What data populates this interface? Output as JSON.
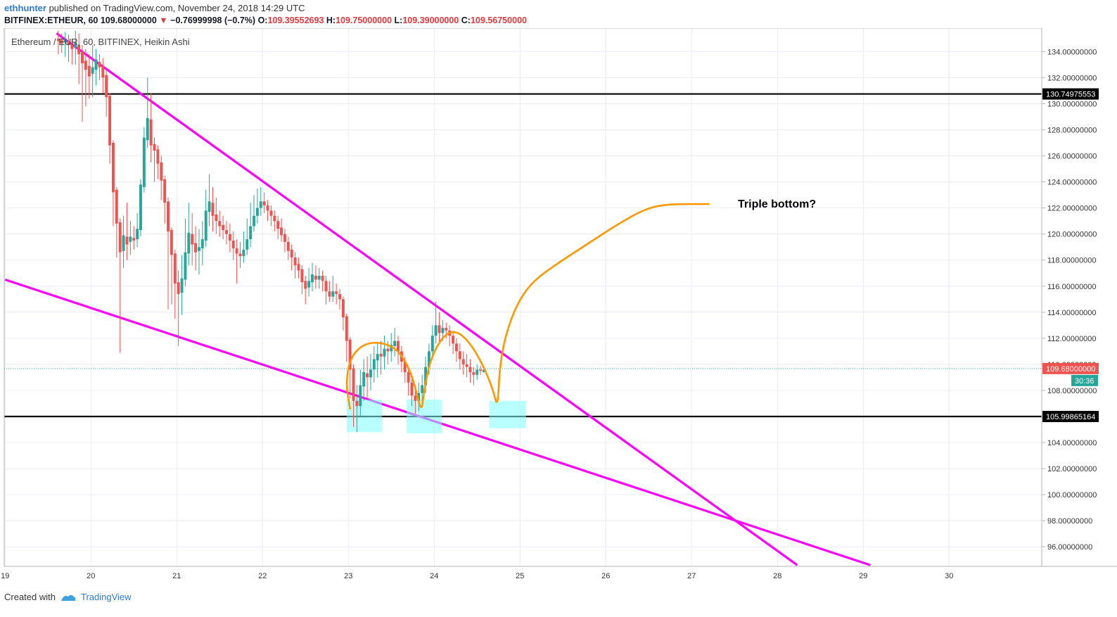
{
  "header": {
    "user": "ethhunter",
    "published": "published on TradingView.com, November 24, 2018 14:29 UTC",
    "symbol": "BITFINEX:ETHEUR, 60",
    "last": "109.68000000",
    "change": "−0.76999998 (−0.7%)",
    "o_label": "O:",
    "o": "109.39552693",
    "h_label": "H:",
    "h": "109.75000000",
    "l_label": "L:",
    "l": "109.39000000",
    "c_label": "C:",
    "c": "109.56750000"
  },
  "footer": {
    "created_with": "Created with",
    "brand": "TradingView"
  },
  "colors": {
    "up": "#26a69a",
    "down": "#ef5350",
    "trendline": "#ff00ff",
    "projection": "#ff9800",
    "highlight": "#80ffff",
    "level": "#000000",
    "last_price": "#ef5350",
    "countdown": "#26a69a"
  },
  "chart_data": {
    "type": "candlestick",
    "title": "Ethereum / EUR, 60, BITFINEX, Heikin Ashi",
    "x_tick_labels": [
      "19",
      "20",
      "21",
      "22",
      "23",
      "24",
      "25",
      "26",
      "27",
      "28",
      "29",
      "30"
    ],
    "x_range_days": [
      18.99,
      31.08
    ],
    "ylim": [
      94.5,
      135.8
    ],
    "y_ticks": [
      "134.00000000",
      "132.00000000",
      "130.00000000",
      "128.00000000",
      "126.00000000",
      "124.00000000",
      "122.00000000",
      "120.00000000",
      "118.00000000",
      "116.00000000",
      "114.00000000",
      "112.00000000",
      "110.00000000",
      "108.00000000",
      "106.00000000",
      "104.00000000",
      "102.00000000",
      "100.00000000",
      "98.00000000",
      "96.00000000"
    ],
    "horizontal_levels": [
      {
        "value": 130.74975553,
        "label": "130.74975553"
      },
      {
        "value": 105.99865164,
        "label": "105.99865164"
      }
    ],
    "last_price": {
      "value": 109.68,
      "label": "109.68000000",
      "countdown": "30:36"
    },
    "annotation": "Triple bottom?",
    "trendlines": [
      {
        "x1": 19.6,
        "y1": 135.4,
        "x2": 28.23,
        "y2": 94.6
      },
      {
        "x1": 19.0,
        "y1": 116.5,
        "x2": 29.08,
        "y2": 94.6
      }
    ],
    "highlight_boxes": [
      {
        "x1": 22.98,
        "x2": 23.39,
        "y1": 104.8,
        "y2": 107.3
      },
      {
        "x1": 23.68,
        "x2": 24.09,
        "y1": 104.7,
        "y2": 107.3
      },
      {
        "x1": 24.64,
        "x2": 25.07,
        "y1": 105.1,
        "y2": 107.2
      }
    ],
    "projection_path": [
      [
        23.02,
        106.6
      ],
      [
        22.97,
        108.5
      ],
      [
        23.02,
        110.5
      ],
      [
        23.18,
        111.6
      ],
      [
        23.4,
        111.7
      ],
      [
        23.6,
        111.0
      ],
      [
        23.75,
        109.1
      ],
      [
        23.85,
        106.2
      ],
      [
        23.88,
        107.8
      ],
      [
        23.95,
        110.3
      ],
      [
        24.1,
        112.2
      ],
      [
        24.25,
        112.6
      ],
      [
        24.4,
        111.8
      ],
      [
        24.55,
        110.2
      ],
      [
        24.68,
        108.2
      ],
      [
        24.74,
        106.6
      ],
      [
        24.76,
        109.5
      ],
      [
        24.82,
        112.0
      ],
      [
        24.96,
        114.6
      ],
      [
        25.15,
        116.4
      ],
      [
        25.45,
        117.8
      ],
      [
        25.8,
        119.3
      ],
      [
        26.15,
        120.8
      ],
      [
        26.45,
        121.9
      ],
      [
        26.7,
        122.3
      ],
      [
        27.2,
        122.3
      ]
    ],
    "candles": [
      {
        "t": 19.62,
        "o": 135.0,
        "c": 134.8,
        "h": 135.6,
        "l": 133.8
      },
      {
        "t": 19.66,
        "o": 134.9,
        "c": 134.6,
        "h": 135.4,
        "l": 133.9
      },
      {
        "t": 19.7,
        "o": 134.7,
        "c": 134.9,
        "h": 135.5,
        "l": 133.6
      },
      {
        "t": 19.74,
        "o": 134.8,
        "c": 134.5,
        "h": 135.3,
        "l": 133.2
      },
      {
        "t": 19.78,
        "o": 134.6,
        "c": 134.2,
        "h": 135.0,
        "l": 133.0
      },
      {
        "t": 19.82,
        "o": 134.3,
        "c": 134.7,
        "h": 135.6,
        "l": 133.0
      },
      {
        "t": 19.86,
        "o": 134.5,
        "c": 133.8,
        "h": 135.4,
        "l": 131.5
      },
      {
        "t": 19.9,
        "o": 134.0,
        "c": 133.1,
        "h": 134.5,
        "l": 128.6
      },
      {
        "t": 19.94,
        "o": 133.3,
        "c": 132.6,
        "h": 134.2,
        "l": 129.8
      },
      {
        "t": 19.98,
        "o": 132.9,
        "c": 132.1,
        "h": 133.8,
        "l": 130.4
      },
      {
        "t": 20.02,
        "o": 132.3,
        "c": 132.8,
        "h": 134.5,
        "l": 130.5
      },
      {
        "t": 20.06,
        "o": 132.6,
        "c": 133.4,
        "h": 134.2,
        "l": 131.4
      },
      {
        "t": 20.1,
        "o": 133.2,
        "c": 132.8,
        "h": 133.8,
        "l": 131.8
      },
      {
        "t": 20.14,
        "o": 132.9,
        "c": 132.0,
        "h": 133.5,
        "l": 130.8
      },
      {
        "t": 20.18,
        "o": 132.2,
        "c": 130.5,
        "h": 132.6,
        "l": 129.0
      },
      {
        "t": 20.22,
        "o": 130.6,
        "c": 126.8,
        "h": 130.8,
        "l": 125.4
      },
      {
        "t": 20.26,
        "o": 127.0,
        "c": 123.2,
        "h": 127.2,
        "l": 120.6
      },
      {
        "t": 20.3,
        "o": 123.4,
        "c": 120.8,
        "h": 123.6,
        "l": 118.2
      },
      {
        "t": 20.34,
        "o": 120.9,
        "c": 118.6,
        "h": 121.2,
        "l": 110.9
      },
      {
        "t": 20.38,
        "o": 118.7,
        "c": 119.9,
        "h": 121.4,
        "l": 117.4
      },
      {
        "t": 20.42,
        "o": 119.8,
        "c": 119.2,
        "h": 122.4,
        "l": 118.0
      },
      {
        "t": 20.46,
        "o": 119.4,
        "c": 119.8,
        "h": 121.0,
        "l": 118.4
      },
      {
        "t": 20.5,
        "o": 119.7,
        "c": 119.5,
        "h": 120.6,
        "l": 118.8
      },
      {
        "t": 20.54,
        "o": 119.6,
        "c": 120.4,
        "h": 121.6,
        "l": 119.0
      },
      {
        "t": 20.58,
        "o": 120.3,
        "c": 123.8,
        "h": 124.2,
        "l": 119.8
      },
      {
        "t": 20.62,
        "o": 123.6,
        "c": 127.4,
        "h": 128.2,
        "l": 123.2
      },
      {
        "t": 20.66,
        "o": 127.2,
        "c": 128.9,
        "h": 132.0,
        "l": 126.6
      },
      {
        "t": 20.7,
        "o": 128.8,
        "c": 126.8,
        "h": 130.8,
        "l": 125.5
      },
      {
        "t": 20.74,
        "o": 126.9,
        "c": 126.4,
        "h": 127.4,
        "l": 124.0
      },
      {
        "t": 20.78,
        "o": 126.5,
        "c": 125.4,
        "h": 126.8,
        "l": 124.2
      },
      {
        "t": 20.82,
        "o": 125.5,
        "c": 124.1,
        "h": 126.0,
        "l": 122.6
      },
      {
        "t": 20.86,
        "o": 124.2,
        "c": 122.4,
        "h": 124.5,
        "l": 120.8
      },
      {
        "t": 20.9,
        "o": 122.5,
        "c": 120.2,
        "h": 122.8,
        "l": 114.2
      },
      {
        "t": 20.94,
        "o": 120.3,
        "c": 118.4,
        "h": 120.5,
        "l": 114.6
      },
      {
        "t": 20.98,
        "o": 118.5,
        "c": 116.2,
        "h": 118.8,
        "l": 113.5
      },
      {
        "t": 21.02,
        "o": 116.3,
        "c": 115.4,
        "h": 117.2,
        "l": 111.4
      },
      {
        "t": 21.06,
        "o": 115.5,
        "c": 116.6,
        "h": 118.4,
        "l": 113.8
      },
      {
        "t": 21.1,
        "o": 116.5,
        "c": 118.6,
        "h": 121.2,
        "l": 116.0
      },
      {
        "t": 21.14,
        "o": 118.5,
        "c": 120.1,
        "h": 122.4,
        "l": 117.6
      },
      {
        "t": 21.18,
        "o": 120.0,
        "c": 119.2,
        "h": 121.6,
        "l": 117.6
      },
      {
        "t": 21.22,
        "o": 119.3,
        "c": 118.6,
        "h": 120.6,
        "l": 117.2
      },
      {
        "t": 21.26,
        "o": 118.7,
        "c": 119.0,
        "h": 120.4,
        "l": 116.9
      },
      {
        "t": 21.3,
        "o": 118.9,
        "c": 119.6,
        "h": 121.0,
        "l": 117.6
      },
      {
        "t": 21.34,
        "o": 119.5,
        "c": 121.8,
        "h": 123.4,
        "l": 119.0
      },
      {
        "t": 21.38,
        "o": 121.7,
        "c": 122.5,
        "h": 124.6,
        "l": 120.6
      },
      {
        "t": 21.42,
        "o": 122.4,
        "c": 121.4,
        "h": 123.6,
        "l": 120.2
      },
      {
        "t": 21.46,
        "o": 121.5,
        "c": 121.0,
        "h": 122.8,
        "l": 120.0
      },
      {
        "t": 21.5,
        "o": 121.0,
        "c": 120.6,
        "h": 121.8,
        "l": 119.8
      },
      {
        "t": 21.54,
        "o": 120.7,
        "c": 120.3,
        "h": 121.4,
        "l": 119.6
      },
      {
        "t": 21.58,
        "o": 120.3,
        "c": 120.0,
        "h": 121.0,
        "l": 119.2
      },
      {
        "t": 21.62,
        "o": 120.0,
        "c": 119.5,
        "h": 120.8,
        "l": 118.6
      },
      {
        "t": 21.66,
        "o": 119.5,
        "c": 118.9,
        "h": 120.2,
        "l": 118.0
      },
      {
        "t": 21.7,
        "o": 118.9,
        "c": 118.5,
        "h": 119.6,
        "l": 116.2
      },
      {
        "t": 21.74,
        "o": 118.5,
        "c": 118.3,
        "h": 119.4,
        "l": 117.4
      },
      {
        "t": 21.78,
        "o": 118.3,
        "c": 118.8,
        "h": 120.2,
        "l": 117.8
      },
      {
        "t": 21.82,
        "o": 118.8,
        "c": 119.6,
        "h": 121.2,
        "l": 118.4
      },
      {
        "t": 21.86,
        "o": 119.6,
        "c": 120.6,
        "h": 122.4,
        "l": 119.0
      },
      {
        "t": 21.9,
        "o": 120.6,
        "c": 121.4,
        "h": 123.0,
        "l": 120.2
      },
      {
        "t": 21.94,
        "o": 121.4,
        "c": 122.0,
        "h": 123.5,
        "l": 120.8
      },
      {
        "t": 21.98,
        "o": 122.0,
        "c": 122.5,
        "h": 123.6,
        "l": 121.4
      },
      {
        "t": 22.02,
        "o": 122.5,
        "c": 122.2,
        "h": 123.2,
        "l": 121.6
      },
      {
        "t": 22.06,
        "o": 122.2,
        "c": 121.8,
        "h": 122.6,
        "l": 121.0
      },
      {
        "t": 22.1,
        "o": 121.8,
        "c": 121.4,
        "h": 122.2,
        "l": 120.6
      },
      {
        "t": 22.14,
        "o": 121.4,
        "c": 121.0,
        "h": 121.8,
        "l": 120.2
      },
      {
        "t": 22.18,
        "o": 121.0,
        "c": 120.4,
        "h": 121.4,
        "l": 119.6
      },
      {
        "t": 22.22,
        "o": 120.5,
        "c": 119.9,
        "h": 121.2,
        "l": 119.4
      },
      {
        "t": 22.26,
        "o": 120.0,
        "c": 119.4,
        "h": 120.4,
        "l": 118.6
      },
      {
        "t": 22.3,
        "o": 119.4,
        "c": 118.7,
        "h": 119.8,
        "l": 118.0
      },
      {
        "t": 22.34,
        "o": 118.8,
        "c": 118.2,
        "h": 119.2,
        "l": 117.2
      },
      {
        "t": 22.38,
        "o": 118.2,
        "c": 117.6,
        "h": 118.6,
        "l": 116.6
      },
      {
        "t": 22.42,
        "o": 117.7,
        "c": 117.2,
        "h": 118.2,
        "l": 116.6
      },
      {
        "t": 22.46,
        "o": 117.3,
        "c": 116.3,
        "h": 117.6,
        "l": 115.4
      },
      {
        "t": 22.5,
        "o": 116.4,
        "c": 115.8,
        "h": 116.8,
        "l": 114.6
      },
      {
        "t": 22.54,
        "o": 115.9,
        "c": 116.4,
        "h": 117.4,
        "l": 115.2
      },
      {
        "t": 22.58,
        "o": 116.3,
        "c": 116.9,
        "h": 117.8,
        "l": 115.6
      },
      {
        "t": 22.62,
        "o": 116.8,
        "c": 116.5,
        "h": 117.6,
        "l": 115.8
      },
      {
        "t": 22.66,
        "o": 116.5,
        "c": 116.8,
        "h": 117.4,
        "l": 115.8
      },
      {
        "t": 22.7,
        "o": 116.8,
        "c": 116.4,
        "h": 117.2,
        "l": 115.6
      },
      {
        "t": 22.74,
        "o": 116.4,
        "c": 115.6,
        "h": 116.8,
        "l": 114.6
      },
      {
        "t": 22.78,
        "o": 115.6,
        "c": 115.2,
        "h": 116.4,
        "l": 114.8
      },
      {
        "t": 22.82,
        "o": 115.2,
        "c": 115.6,
        "h": 116.8,
        "l": 114.8
      },
      {
        "t": 22.86,
        "o": 115.6,
        "c": 115.4,
        "h": 116.2,
        "l": 114.6
      },
      {
        "t": 22.9,
        "o": 115.4,
        "c": 115.0,
        "h": 115.8,
        "l": 114.2
      },
      {
        "t": 22.94,
        "o": 115.0,
        "c": 113.6,
        "h": 115.2,
        "l": 112.6
      },
      {
        "t": 22.98,
        "o": 113.7,
        "c": 111.8,
        "h": 113.9,
        "l": 110.2
      },
      {
        "t": 23.02,
        "o": 111.9,
        "c": 109.6,
        "h": 112.1,
        "l": 107.4
      },
      {
        "t": 23.06,
        "o": 109.7,
        "c": 107.2,
        "h": 110.0,
        "l": 105.2
      },
      {
        "t": 23.1,
        "o": 107.2,
        "c": 106.8,
        "h": 108.4,
        "l": 104.8
      },
      {
        "t": 23.14,
        "o": 106.8,
        "c": 108.4,
        "h": 109.6,
        "l": 106.0
      },
      {
        "t": 23.18,
        "o": 108.3,
        "c": 109.4,
        "h": 110.4,
        "l": 107.2
      },
      {
        "t": 23.22,
        "o": 109.3,
        "c": 109.0,
        "h": 110.6,
        "l": 107.4
      },
      {
        "t": 23.26,
        "o": 109.0,
        "c": 109.6,
        "h": 110.8,
        "l": 108.0
      },
      {
        "t": 23.3,
        "o": 109.6,
        "c": 110.4,
        "h": 111.4,
        "l": 108.6
      },
      {
        "t": 23.34,
        "o": 110.3,
        "c": 110.8,
        "h": 111.6,
        "l": 109.0
      },
      {
        "t": 23.38,
        "o": 110.8,
        "c": 110.6,
        "h": 111.8,
        "l": 109.2
      },
      {
        "t": 23.42,
        "o": 110.6,
        "c": 111.2,
        "h": 112.2,
        "l": 109.6
      },
      {
        "t": 23.46,
        "o": 111.2,
        "c": 111.0,
        "h": 111.8,
        "l": 110.0
      },
      {
        "t": 23.5,
        "o": 111.0,
        "c": 111.5,
        "h": 112.4,
        "l": 110.2
      },
      {
        "t": 23.54,
        "o": 111.4,
        "c": 111.8,
        "h": 112.8,
        "l": 110.6
      },
      {
        "t": 23.58,
        "o": 111.8,
        "c": 111.0,
        "h": 112.2,
        "l": 110.0
      },
      {
        "t": 23.62,
        "o": 111.0,
        "c": 110.2,
        "h": 111.4,
        "l": 109.4
      },
      {
        "t": 23.66,
        "o": 110.2,
        "c": 109.4,
        "h": 110.6,
        "l": 108.6
      },
      {
        "t": 23.7,
        "o": 109.4,
        "c": 108.6,
        "h": 109.8,
        "l": 107.6
      },
      {
        "t": 23.74,
        "o": 108.6,
        "c": 107.6,
        "h": 109.0,
        "l": 106.8
      },
      {
        "t": 23.78,
        "o": 107.6,
        "c": 107.2,
        "h": 108.4,
        "l": 106.2
      },
      {
        "t": 23.82,
        "o": 107.2,
        "c": 107.8,
        "h": 108.6,
        "l": 106.4
      },
      {
        "t": 23.86,
        "o": 107.8,
        "c": 108.4,
        "h": 109.2,
        "l": 107.0
      },
      {
        "t": 23.9,
        "o": 108.4,
        "c": 109.8,
        "h": 110.6,
        "l": 107.8
      },
      {
        "t": 23.94,
        "o": 109.8,
        "c": 111.0,
        "h": 111.6,
        "l": 109.2
      },
      {
        "t": 23.98,
        "o": 111.0,
        "c": 112.2,
        "h": 113.0,
        "l": 110.4
      },
      {
        "t": 24.02,
        "o": 112.2,
        "c": 113.0,
        "h": 114.8,
        "l": 111.6
      },
      {
        "t": 24.06,
        "o": 113.0,
        "c": 112.4,
        "h": 114.0,
        "l": 111.6
      },
      {
        "t": 24.1,
        "o": 112.4,
        "c": 112.8,
        "h": 113.4,
        "l": 111.8
      },
      {
        "t": 24.14,
        "o": 112.8,
        "c": 112.6,
        "h": 113.2,
        "l": 112.0
      },
      {
        "t": 24.18,
        "o": 112.6,
        "c": 112.2,
        "h": 113.0,
        "l": 111.4
      },
      {
        "t": 24.22,
        "o": 112.2,
        "c": 111.6,
        "h": 112.6,
        "l": 110.8
      },
      {
        "t": 24.26,
        "o": 111.6,
        "c": 111.0,
        "h": 112.0,
        "l": 110.2
      },
      {
        "t": 24.3,
        "o": 111.0,
        "c": 110.4,
        "h": 111.6,
        "l": 109.6
      },
      {
        "t": 24.34,
        "o": 110.4,
        "c": 110.0,
        "h": 111.0,
        "l": 109.2
      },
      {
        "t": 24.38,
        "o": 110.0,
        "c": 109.8,
        "h": 110.8,
        "l": 109.0
      },
      {
        "t": 24.42,
        "o": 109.8,
        "c": 109.4,
        "h": 110.4,
        "l": 108.6
      },
      {
        "t": 24.46,
        "o": 109.4,
        "c": 109.2,
        "h": 109.8,
        "l": 108.4
      },
      {
        "t": 24.5,
        "o": 109.2,
        "c": 109.6,
        "h": 110.0,
        "l": 108.8
      },
      {
        "t": 24.54,
        "o": 109.6,
        "c": 109.5,
        "h": 109.9,
        "l": 109.2
      },
      {
        "t": 24.58,
        "o": 109.4,
        "c": 109.6,
        "h": 109.75,
        "l": 109.39
      }
    ]
  }
}
